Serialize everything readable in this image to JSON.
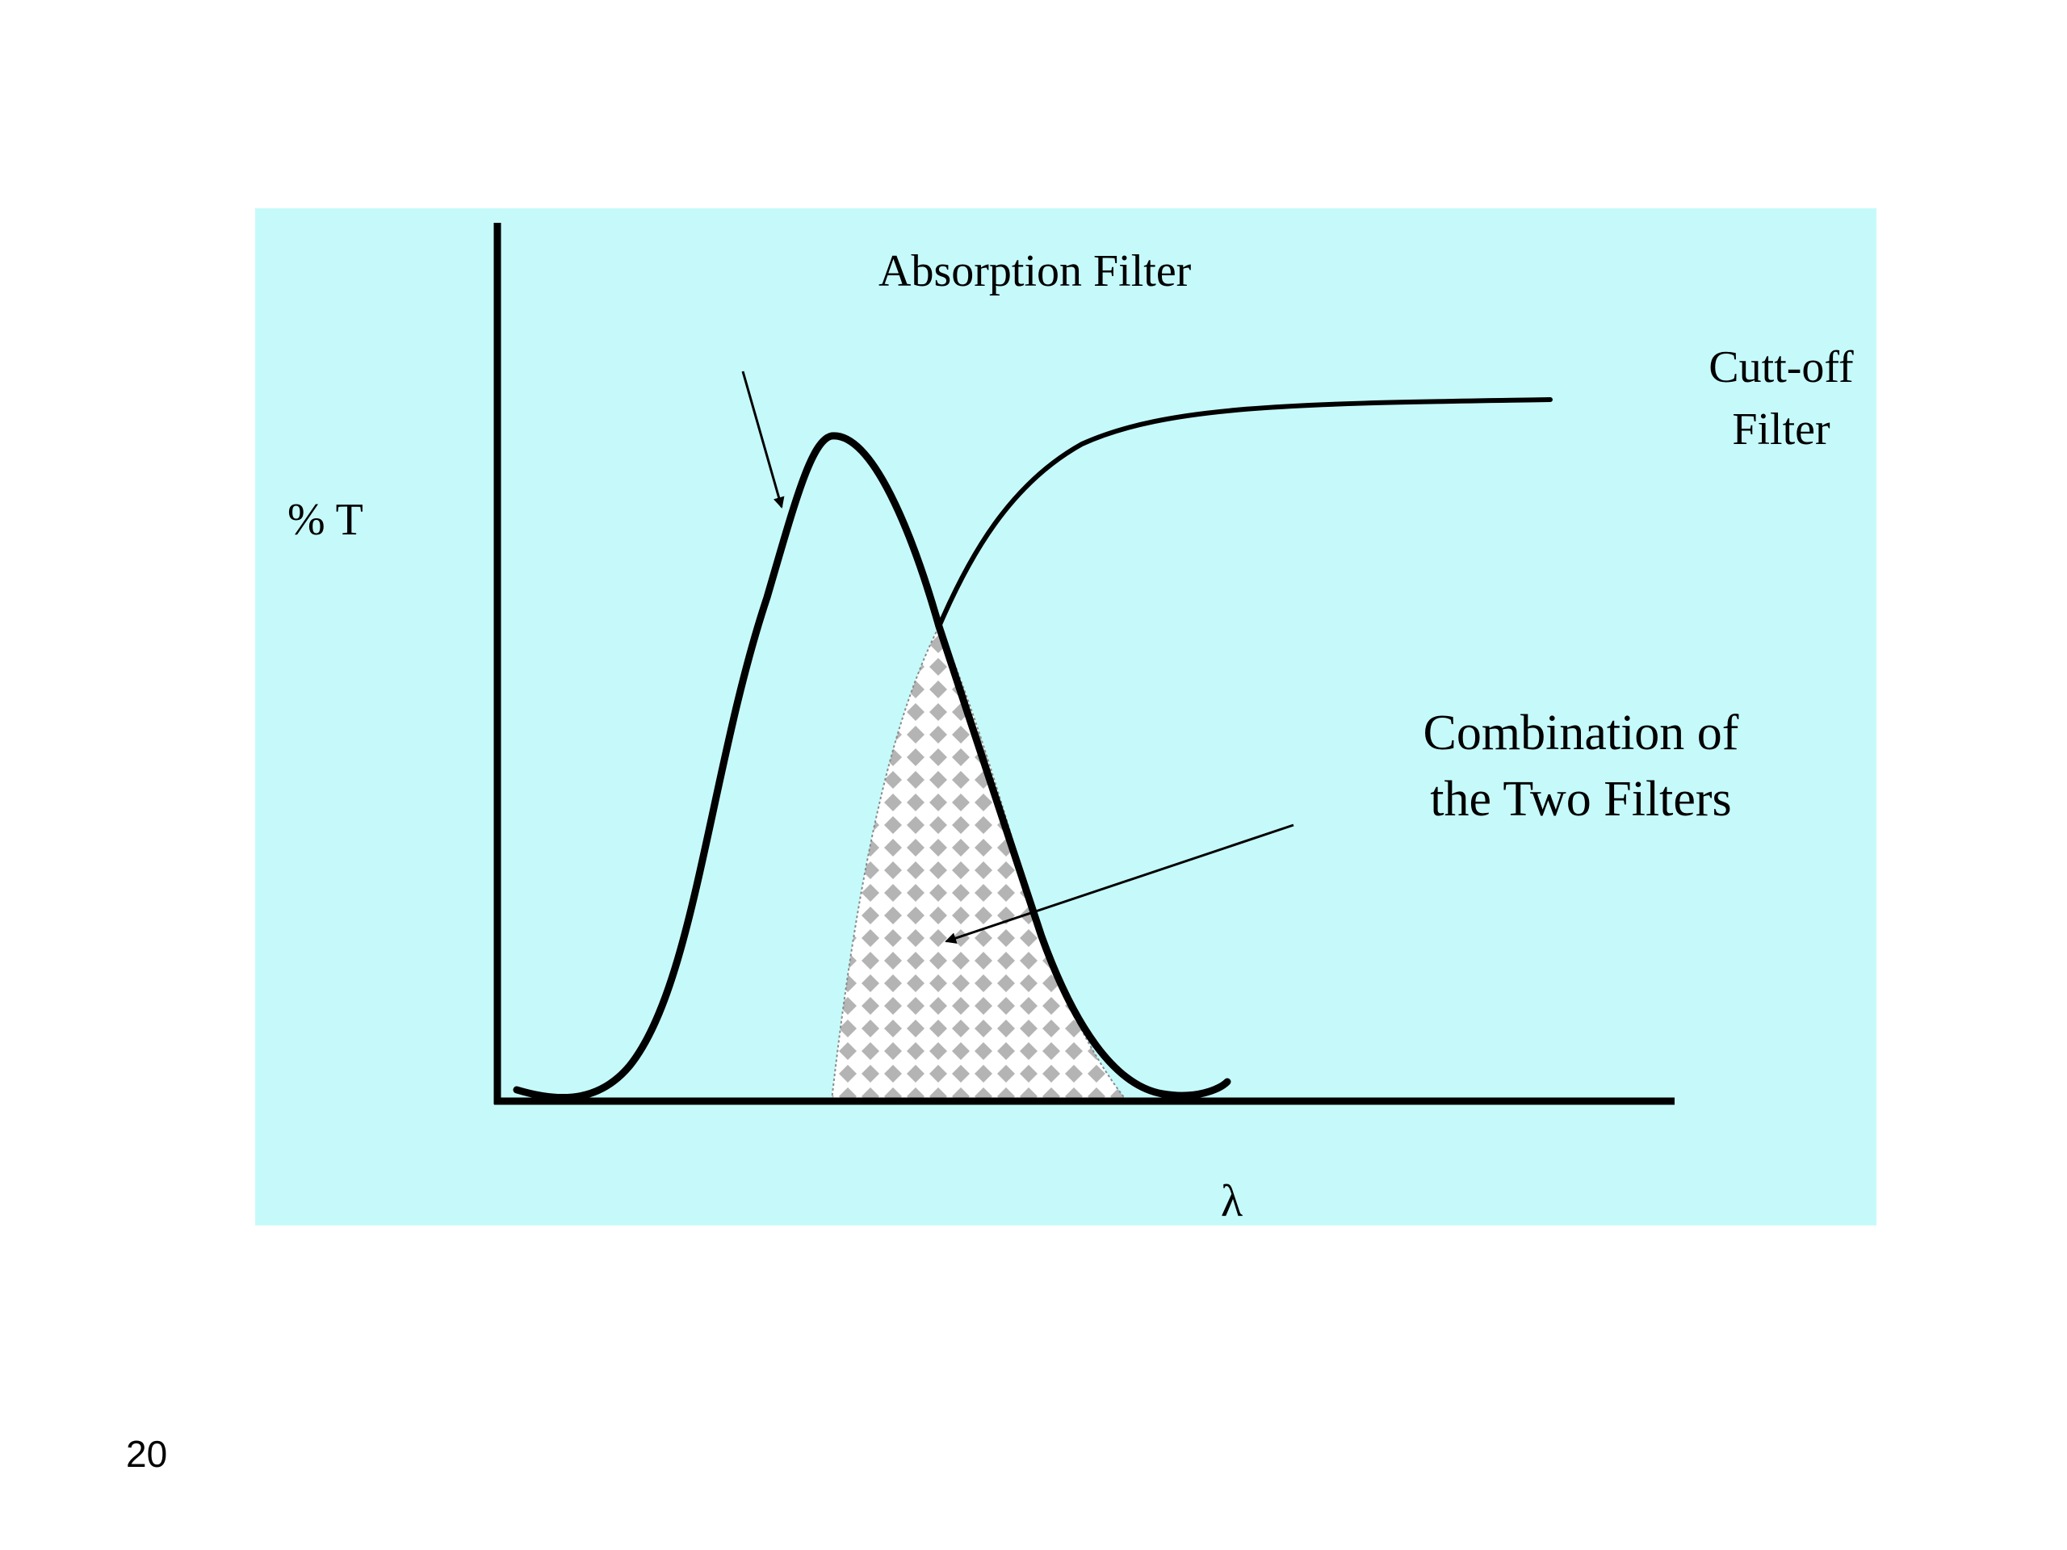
{
  "slide": {
    "number": "20"
  },
  "colors": {
    "panel_background": "#C6FAFA",
    "curve": "#000000",
    "overlap_dots": "#B4B4B4"
  },
  "labels": {
    "absorption_filter": "Absorption Filter",
    "cutoff_filter_line1": "Cutt-off",
    "cutoff_filter_line2": "Filter",
    "y_axis": "% T",
    "x_axis": "λ",
    "combination_line1": "Combination of",
    "combination_line2": "the Two Filters"
  }
}
